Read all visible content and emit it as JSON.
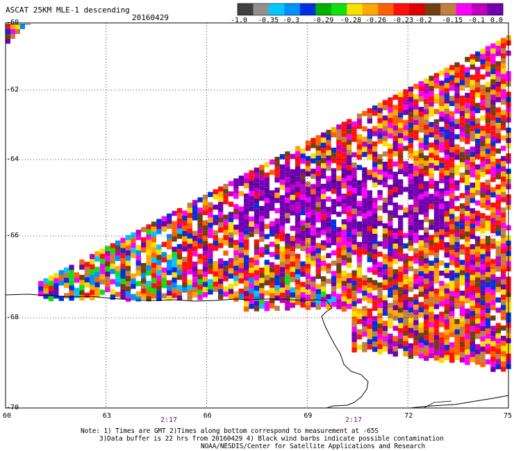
{
  "header": {
    "title": "ASCAT 25KM MLE-1 descending",
    "date": "20160429"
  },
  "colorbar": {
    "colors": [
      "#404040",
      "#909090",
      "#00c8ff",
      "#0090ff",
      "#0030e0",
      "#00b000",
      "#10e010",
      "#f8e000",
      "#ffa800",
      "#ff6000",
      "#ff1010",
      "#e00000",
      "#704010",
      "#c08040",
      "#ff00ff",
      "#c000c0",
      "#7000b0"
    ],
    "labels": [
      "-1.0",
      "-0.35",
      "-0.3",
      "-0.29",
      "-0.28",
      "-0.26",
      "-0.23",
      "-0.2",
      "-0.15",
      "-0.1",
      "0.0"
    ]
  },
  "axes": {
    "lat_labels": [
      "-60",
      "-62",
      "-64",
      "-66",
      "-68",
      "-70"
    ],
    "lon_labels": [
      "60",
      "63",
      "66",
      "69",
      "72",
      "75"
    ]
  },
  "times": [
    "2:17",
    "2:17"
  ],
  "notes": {
    "line1": "Note: 1) Times are GMT 2)Times along bottom correspond to measurement at -65S",
    "line2": "3)Data buffer is 22 hrs from 20160429 4) Black wind barbs indicate possible contamination",
    "line3": "NOAA/NESDIS/Center for Satellite Applications and Research"
  },
  "map_data": {
    "palette": {
      "purple": "#7000b0",
      "dark_purple": "#5c00a0",
      "magenta": "#ff00ff",
      "orchid": "#c000c0",
      "red": "#ff1010",
      "orange": "#ffa800",
      "dark_orange": "#ff6000",
      "yellow": "#f8e000",
      "green": "#10e010",
      "blue": "#0030e0",
      "mid_blue": "#0090ff",
      "cyan": "#00c8ff",
      "brown": "#704010",
      "tan": "#c08040",
      "white": "#ffffff"
    }
  }
}
